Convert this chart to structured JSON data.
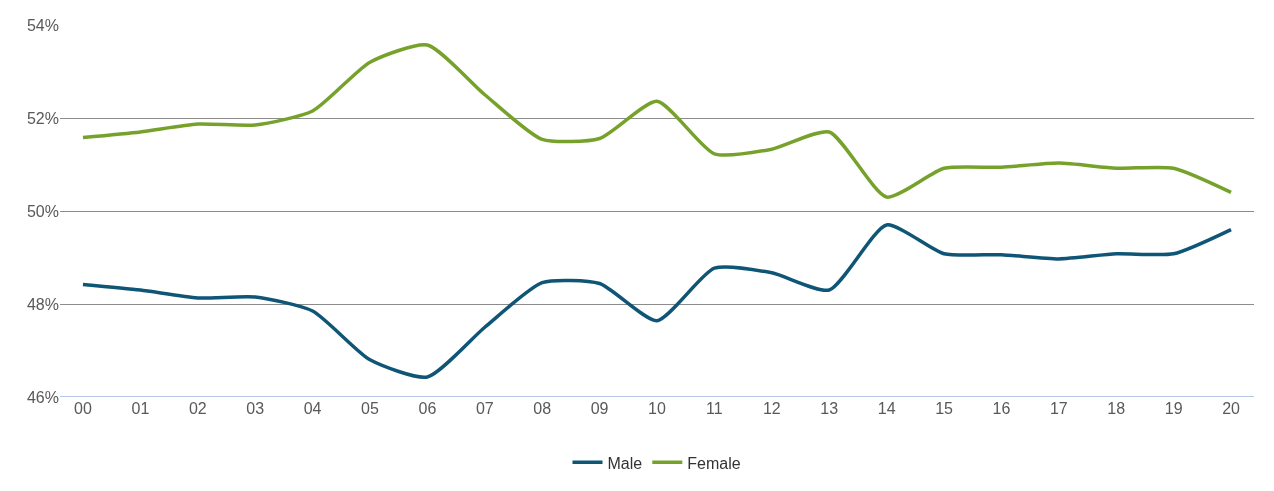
{
  "chart_data": {
    "type": "line",
    "categories": [
      "00",
      "01",
      "02",
      "03",
      "04",
      "05",
      "06",
      "07",
      "08",
      "09",
      "10",
      "11",
      "12",
      "13",
      "14",
      "15",
      "16",
      "17",
      "18",
      "19",
      "20"
    ],
    "series": [
      {
        "name": "Male",
        "color": "#0f5576",
        "values": [
          48.42,
          48.3,
          48.13,
          48.15,
          47.85,
          46.8,
          46.43,
          47.5,
          48.46,
          48.44,
          47.64,
          48.77,
          48.67,
          48.3,
          49.7,
          49.08,
          49.06,
          48.97,
          49.08,
          49.08,
          49.6
        ]
      },
      {
        "name": "Female",
        "color": "#76a22c",
        "values": [
          51.58,
          51.7,
          51.87,
          51.85,
          52.15,
          53.2,
          53.57,
          52.5,
          51.54,
          51.56,
          52.36,
          51.23,
          51.33,
          51.7,
          50.3,
          50.92,
          50.94,
          51.03,
          50.92,
          50.92,
          50.4
        ]
      }
    ],
    "ylim": [
      46,
      54
    ],
    "yticks": [
      {
        "value": 46,
        "label": "46%"
      },
      {
        "value": 48,
        "label": "48%"
      },
      {
        "value": 50,
        "label": "50%"
      },
      {
        "value": 52,
        "label": "52%"
      },
      {
        "value": 54,
        "label": "54%"
      }
    ],
    "grid": "y",
    "legend": "bottom",
    "marker": "none",
    "line_style": "solid"
  }
}
